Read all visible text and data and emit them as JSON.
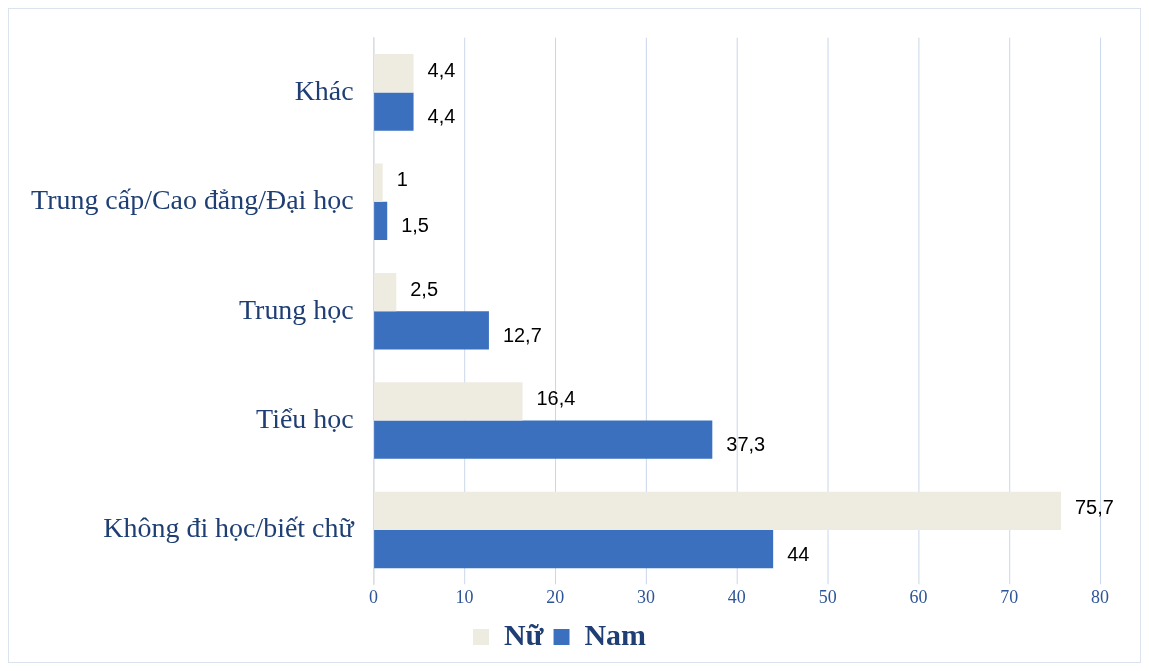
{
  "chart_data": {
    "type": "bar",
    "orientation": "horizontal",
    "categories": [
      "Khác",
      "Trung cấp/Cao đẳng/Đại học",
      "Trung học",
      "Tiểu học",
      "Không đi học/biết chữ"
    ],
    "series": [
      {
        "name": "Nữ",
        "color": "#eeebe1",
        "values": [
          4.4,
          1,
          2.5,
          16.4,
          75.7
        ],
        "value_labels": [
          "4,4",
          "1",
          "2,5",
          "16,4",
          "75,7"
        ]
      },
      {
        "name": "Nam",
        "color": "#3b70bf",
        "values": [
          4.4,
          1.5,
          12.7,
          37.3,
          44
        ],
        "value_labels": [
          "4,4",
          "1,5",
          "12,7",
          "37,3",
          "44"
        ]
      }
    ],
    "xlim": [
      0,
      80
    ],
    "xticks": [
      0,
      10,
      20,
      30,
      40,
      50,
      60,
      70,
      80
    ],
    "grid": "x",
    "legend": "bottom"
  }
}
